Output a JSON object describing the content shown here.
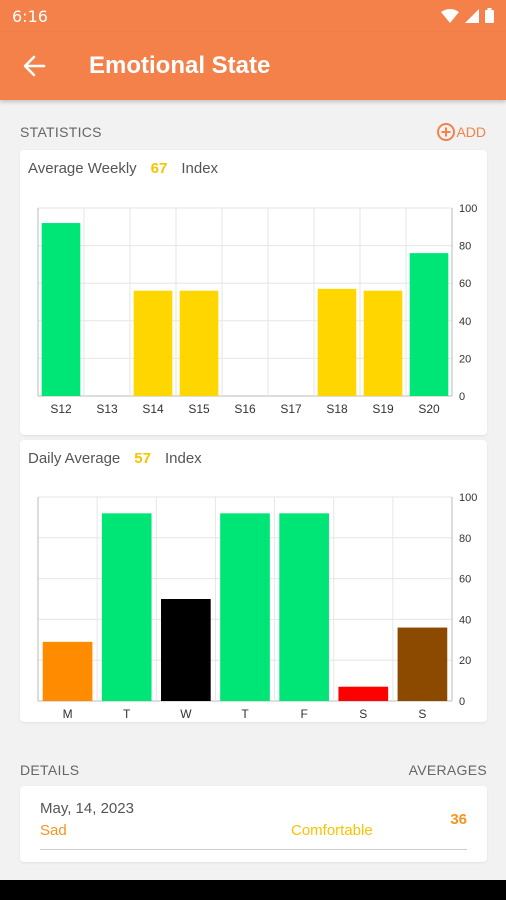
{
  "status": {
    "time": "6:16"
  },
  "appbar": {
    "title": "Emotional State"
  },
  "statistics": {
    "label": "STATISTICS",
    "add_label": "ADD"
  },
  "weekly": {
    "label": "Average Weekly",
    "value": "67",
    "unit": "Index",
    "chart_data": {
      "type": "bar",
      "categories": [
        "S12",
        "S13",
        "S14",
        "S15",
        "S16",
        "S17",
        "S18",
        "S19",
        "S20"
      ],
      "values": [
        92,
        null,
        56,
        56,
        null,
        null,
        57,
        56,
        76
      ],
      "colors": [
        "#00e676",
        null,
        "#ffd600",
        "#ffd600",
        null,
        null,
        "#ffd600",
        "#ffd600",
        "#00e676"
      ],
      "ylim": [
        0,
        100
      ],
      "yticks": [
        0,
        20,
        40,
        60,
        80,
        100
      ],
      "grid": true
    }
  },
  "daily": {
    "label": "Daily Average",
    "value": "57",
    "unit": "Index",
    "chart_data": {
      "type": "bar",
      "categories": [
        "M",
        "T",
        "W",
        "T",
        "F",
        "S",
        "S"
      ],
      "values": [
        29,
        92,
        50,
        92,
        92,
        7,
        36
      ],
      "colors": [
        "#ff8c00",
        "#00e676",
        "#000000",
        "#00e676",
        "#00e676",
        "#ff0000",
        "#8b4a00"
      ],
      "ylim": [
        0,
        100
      ],
      "yticks": [
        0,
        20,
        40,
        60,
        80,
        100
      ],
      "grid": true
    }
  },
  "details": {
    "label": "DETAILS",
    "averages_label": "AVERAGES",
    "entries": [
      {
        "date": "May, 14, 2023",
        "mood": "Sad",
        "state": "Comfortable",
        "average": "36"
      }
    ]
  },
  "colors": {
    "accent": "#f5814a",
    "yellow": "#f8c400",
    "orange": "#f7941d"
  }
}
